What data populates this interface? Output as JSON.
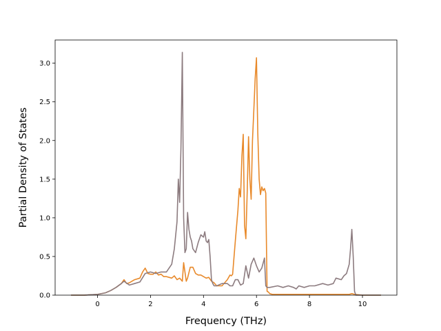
{
  "chart_data": {
    "type": "line",
    "xlabel": "Frequency (THz)",
    "ylabel": "Partial Density of States",
    "xlim": [
      -1.6,
      11.3
    ],
    "ylim": [
      0,
      3.3
    ],
    "xticks": [
      0,
      2,
      4,
      6,
      8,
      10
    ],
    "yticks": [
      0.0,
      0.5,
      1.0,
      1.5,
      2.0,
      2.5,
      3.0
    ],
    "xtick_labels": [
      "0",
      "2",
      "4",
      "6",
      "8",
      "10"
    ],
    "ytick_labels": [
      "0.0",
      "0.5",
      "1.0",
      "1.5",
      "2.0",
      "2.5",
      "3.0"
    ],
    "grid": false,
    "legend": "none",
    "series": [
      {
        "color": "#e8892a",
        "x": [
          -1.0,
          -0.5,
          0.0,
          0.3,
          0.5,
          0.7,
          0.9,
          1.0,
          1.1,
          1.2,
          1.4,
          1.6,
          1.7,
          1.8,
          1.9,
          2.0,
          2.1,
          2.2,
          2.3,
          2.4,
          2.5,
          2.6,
          2.7,
          2.8,
          2.9,
          3.0,
          3.1,
          3.2,
          3.25,
          3.3,
          3.35,
          3.4,
          3.5,
          3.6,
          3.7,
          3.8,
          3.9,
          4.0,
          4.1,
          4.2,
          4.3,
          4.4,
          4.5,
          4.7,
          4.9,
          5.0,
          5.05,
          5.1,
          5.2,
          5.3,
          5.35,
          5.4,
          5.45,
          5.5,
          5.55,
          5.6,
          5.65,
          5.7,
          5.75,
          5.8,
          5.85,
          5.9,
          5.95,
          6.0,
          6.05,
          6.1,
          6.15,
          6.2,
          6.25,
          6.3,
          6.35,
          6.4,
          6.45,
          6.5,
          6.6,
          6.8,
          7.0,
          7.5,
          8.0,
          8.5,
          9.0,
          9.5,
          9.6,
          9.7,
          10.0,
          10.7
        ],
        "y": [
          0.0,
          0.0,
          0.01,
          0.03,
          0.06,
          0.1,
          0.15,
          0.2,
          0.15,
          0.16,
          0.2,
          0.22,
          0.3,
          0.35,
          0.28,
          0.27,
          0.27,
          0.3,
          0.26,
          0.27,
          0.24,
          0.24,
          0.23,
          0.22,
          0.25,
          0.2,
          0.22,
          0.18,
          0.42,
          0.3,
          0.18,
          0.22,
          0.36,
          0.36,
          0.28,
          0.26,
          0.26,
          0.24,
          0.22,
          0.23,
          0.18,
          0.16,
          0.12,
          0.12,
          0.2,
          0.26,
          0.25,
          0.27,
          0.7,
          1.1,
          1.38,
          1.27,
          1.8,
          2.08,
          0.9,
          0.73,
          1.35,
          2.05,
          1.5,
          1.24,
          2.0,
          2.4,
          2.8,
          3.07,
          2.1,
          1.5,
          1.3,
          1.4,
          1.35,
          1.38,
          1.32,
          0.05,
          0.04,
          0.02,
          0.01,
          0.01,
          0.01,
          0.01,
          0.01,
          0.01,
          0.01,
          0.01,
          0.02,
          0.01,
          0.0,
          0.0
        ]
      },
      {
        "color": "#8c7b7f",
        "x": [
          -1.0,
          -0.5,
          0.0,
          0.3,
          0.5,
          0.7,
          0.9,
          1.0,
          1.2,
          1.4,
          1.6,
          1.8,
          2.0,
          2.2,
          2.4,
          2.6,
          2.8,
          2.9,
          3.0,
          3.05,
          3.1,
          3.15,
          3.2,
          3.25,
          3.3,
          3.35,
          3.4,
          3.45,
          3.5,
          3.55,
          3.6,
          3.7,
          3.8,
          3.9,
          4.0,
          4.05,
          4.1,
          4.15,
          4.2,
          4.25,
          4.3,
          4.35,
          4.4,
          4.5,
          4.7,
          4.9,
          5.0,
          5.1,
          5.2,
          5.3,
          5.4,
          5.5,
          5.6,
          5.7,
          5.8,
          5.9,
          6.0,
          6.1,
          6.2,
          6.3,
          6.35,
          6.4,
          6.5,
          6.8,
          7.0,
          7.2,
          7.4,
          7.5,
          7.6,
          7.8,
          8.0,
          8.2,
          8.5,
          8.7,
          8.9,
          9.0,
          9.2,
          9.3,
          9.4,
          9.5,
          9.55,
          9.6,
          9.65,
          9.7,
          9.75,
          10.0,
          10.7
        ],
        "y": [
          0.0,
          0.0,
          0.01,
          0.03,
          0.06,
          0.1,
          0.15,
          0.18,
          0.13,
          0.15,
          0.17,
          0.28,
          0.3,
          0.28,
          0.3,
          0.3,
          0.4,
          0.6,
          0.95,
          1.5,
          1.2,
          1.9,
          3.14,
          1.0,
          0.55,
          0.6,
          1.07,
          0.85,
          0.75,
          0.7,
          0.6,
          0.55,
          0.68,
          0.78,
          0.75,
          0.82,
          0.7,
          0.68,
          0.72,
          0.5,
          0.2,
          0.15,
          0.12,
          0.12,
          0.15,
          0.15,
          0.12,
          0.12,
          0.2,
          0.2,
          0.13,
          0.15,
          0.38,
          0.22,
          0.4,
          0.48,
          0.38,
          0.3,
          0.35,
          0.48,
          0.12,
          0.1,
          0.1,
          0.12,
          0.1,
          0.12,
          0.1,
          0.08,
          0.12,
          0.1,
          0.12,
          0.12,
          0.15,
          0.13,
          0.15,
          0.22,
          0.2,
          0.25,
          0.28,
          0.4,
          0.6,
          0.85,
          0.5,
          0.05,
          0.0,
          0.0,
          0.0
        ]
      }
    ]
  }
}
